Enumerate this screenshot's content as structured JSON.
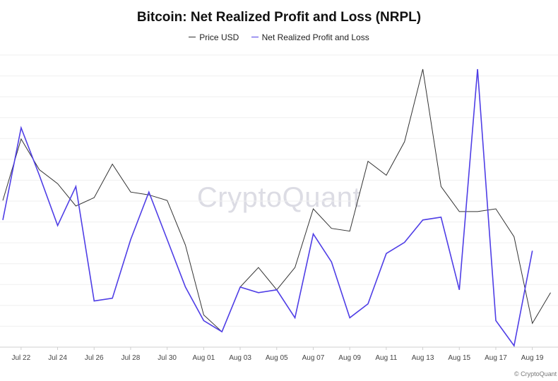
{
  "chart_data": {
    "type": "line",
    "title": "Bitcoin: Net Realized Profit and Loss (NRPL)",
    "xlabel": "",
    "ylabel": "",
    "x_tick_labels": [
      "Jul 22",
      "Jul 24",
      "Jul 26",
      "Jul 28",
      "Jul 30",
      "Aug 01",
      "Aug 03",
      "Aug 05",
      "Aug 07",
      "Aug 09",
      "Aug 11",
      "Aug 13",
      "Aug 15",
      "Aug 17",
      "Aug 19"
    ],
    "x": [
      "Jul 21",
      "Jul 22",
      "Jul 23",
      "Jul 24",
      "Jul 25",
      "Jul 26",
      "Jul 27",
      "Jul 28",
      "Jul 29",
      "Jul 30",
      "Jul 31",
      "Aug 01",
      "Aug 02",
      "Aug 03",
      "Aug 04",
      "Aug 05",
      "Aug 06",
      "Aug 07",
      "Aug 08",
      "Aug 09",
      "Aug 10",
      "Aug 11",
      "Aug 12",
      "Aug 13",
      "Aug 14",
      "Aug 15",
      "Aug 16",
      "Aug 17",
      "Aug 18",
      "Aug 19",
      "Aug 20"
    ],
    "y_range": [
      0,
      100
    ],
    "y_tick_labels_visible": false,
    "grid": "horizontal",
    "legend_position": "top-center",
    "series": [
      {
        "name": "Price USD",
        "color": "#333333",
        "values": [
          52,
          74,
          63,
          58,
          50,
          53,
          65,
          55,
          54,
          52,
          36,
          11,
          5,
          21,
          28,
          20,
          28,
          49,
          42,
          41,
          66,
          61,
          73,
          99,
          57,
          48,
          48,
          49,
          39,
          8,
          19
        ]
      },
      {
        "name": "Net Realized Profit and Loss",
        "color": "#4f3ee6",
        "values": [
          45,
          78,
          61,
          43,
          57,
          16,
          17,
          38,
          55,
          38,
          21,
          9,
          5,
          21,
          19,
          20,
          10,
          40,
          30,
          10,
          15,
          33,
          37,
          45,
          46,
          20,
          99,
          9,
          0,
          34,
          null
        ]
      }
    ]
  },
  "watermark": "CryptoQuant",
  "credit": "© CryptoQuant.com"
}
